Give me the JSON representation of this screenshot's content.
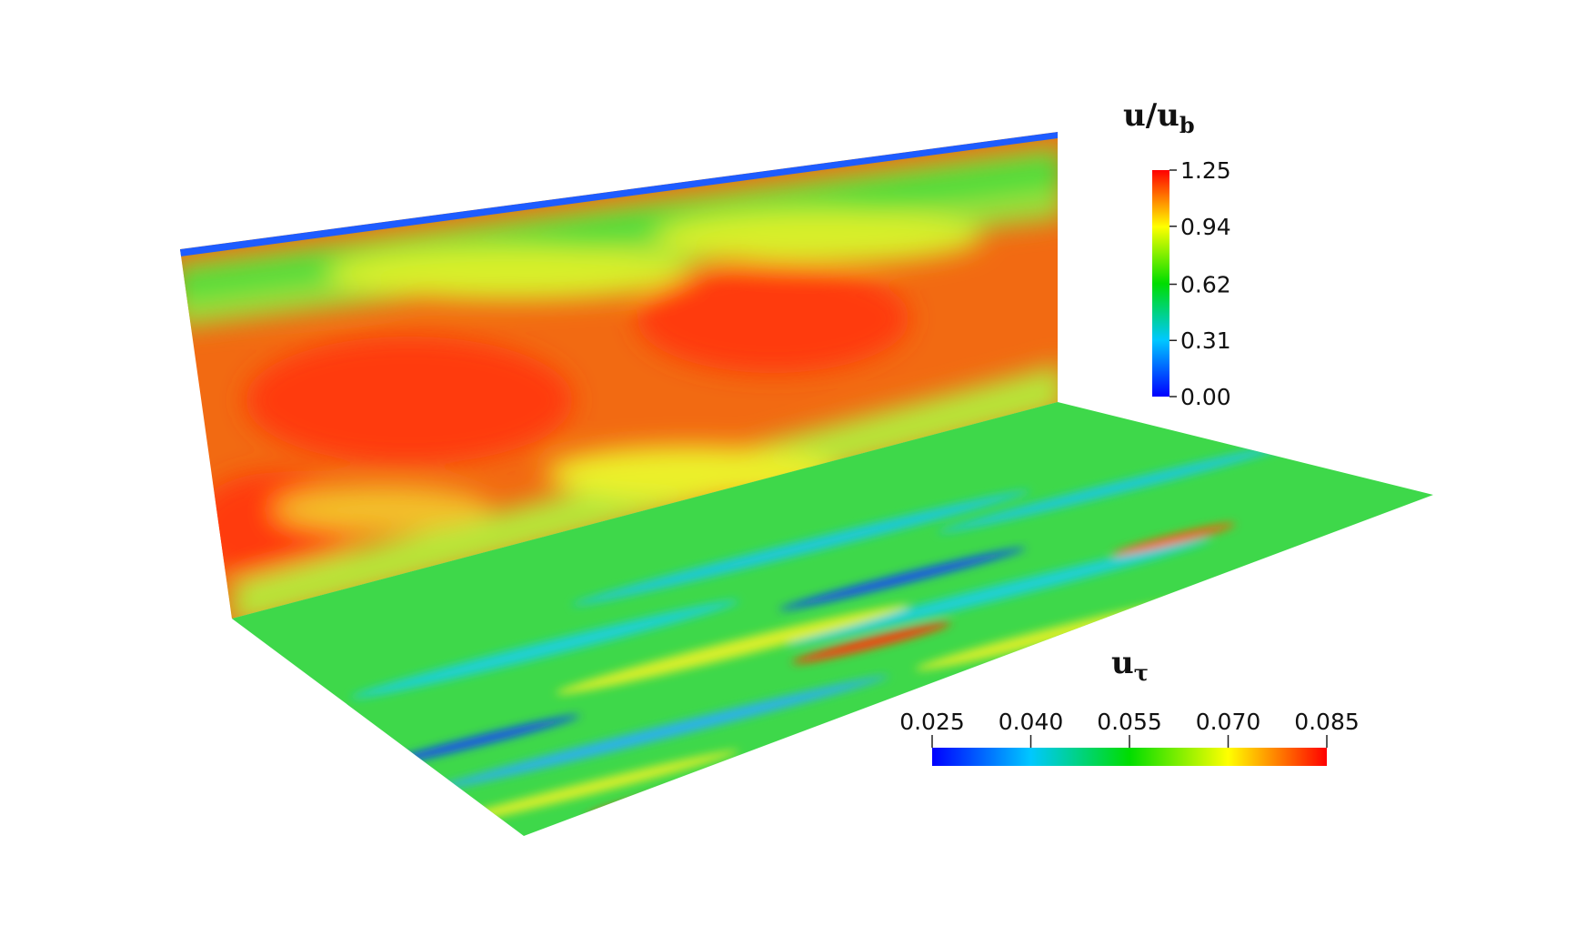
{
  "colorbars": [
    {
      "title": "u/u",
      "title_sub": "b",
      "orientation": "vertical",
      "lim": [
        0,
        1.25
      ],
      "ticks": [
        {
          "value": 0,
          "label": "0.00"
        },
        0.31,
        0.62,
        0.94,
        1.25
      ]
    },
    {
      "title": "u",
      "title_sub": "τ",
      "orientation": "horizontal",
      "lim": [
        0.025,
        0.085
      ],
      "ticks": [
        0.025,
        {
          "value": 0.04,
          "label": "0.040"
        },
        0.055,
        {
          "value": 0.07,
          "label": "0.070"
        },
        0.085
      ]
    }
  ]
}
